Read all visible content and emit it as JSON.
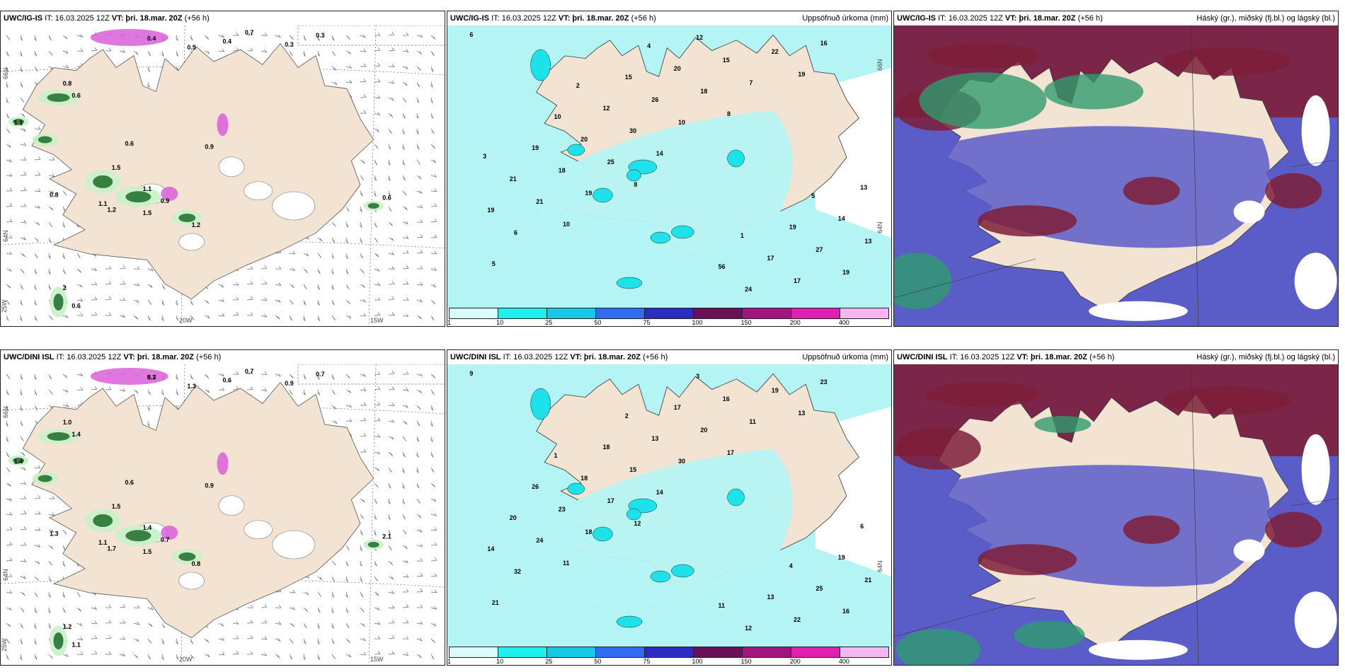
{
  "colors": {
    "land": "#f2e3d3",
    "sea": "#ffffff",
    "precip_light": "#b5f4f4",
    "precip_cyan": "#1ee2ea",
    "green_light": "#c9f1c9",
    "green_dark": "#1d6b2a",
    "magenta": "#d95fd9",
    "purple_dark": "#6c2a5a",
    "cloud_high": "#7e1f3a",
    "cloud_mid": "#5a5cc8",
    "cloud_low": "#2f9b6e"
  },
  "panels": [
    {
      "id": "ig-wind",
      "model": "UWC/IG-IS",
      "it_text": "IT: 16.03.2025 12Z",
      "vt_text": "VT: þri. 18.mar. 20Z",
      "lead": "(+56 h)",
      "right_title": "",
      "axes": {
        "lat1": "66N",
        "lat2": "64N",
        "lon0": "25W",
        "lon1": "20W",
        "lon2": "15W"
      },
      "values": [
        "0.4",
        "0.5",
        "0.4",
        "0.7",
        "0.3",
        "0.3",
        "0.8",
        "0.6",
        "1.1",
        "0.6",
        "0.9",
        "1.5",
        "0.8",
        "1.1",
        "0.9",
        "1.2",
        "1.1",
        "1.5",
        "1.2",
        "0.6",
        "2",
        "0.6"
      ]
    },
    {
      "id": "ig-precip",
      "model": "UWC/IG-IS",
      "it_text": "IT: 16.03.2025 12Z",
      "vt_text": "VT: þri. 18.mar. 20Z",
      "lead": "(+56 h)",
      "right_title": "Uppsöfnuð úrkoma (mm)",
      "axes": {
        "lat1": "66N",
        "lat2": "64N",
        "lon0": "",
        "lon1": "",
        "lon2": ""
      },
      "values": [
        "6",
        "8",
        "19",
        "10",
        "8",
        "5",
        "14",
        "16",
        "19",
        "7",
        "6",
        "10",
        "19",
        "25",
        "22",
        "21",
        "18",
        "13",
        "30",
        "17",
        "18",
        "15",
        "19",
        "26",
        "27",
        "20",
        "24",
        "21",
        "20",
        "14",
        "12",
        "17",
        "19",
        "12",
        "13",
        "15",
        "19",
        "10",
        "56",
        "3",
        "4",
        "5",
        "2",
        "1"
      ]
    },
    {
      "id": "ig-cloud",
      "model": "UWC/IG-IS",
      "it_text": "IT: 16.03.2025 12Z",
      "vt_text": "VT: þri. 18.mar. 20Z",
      "lead": "(+56 h)",
      "right_title": "Háský (gr.), miðský (fj.bl.) og lágský (bl.)"
    },
    {
      "id": "dini-wind",
      "model": "UWC/DINI ISL",
      "it_text": "IT: 16.03.2025 12Z",
      "vt_text": "VT: þri. 18.mar. 20Z",
      "lead": "(+56 h)",
      "right_title": "",
      "axes": {
        "lat1": "66N",
        "lat2": "64N",
        "lon0": "25W",
        "lon1": "20W",
        "lon2": "15W"
      },
      "values": [
        "0.7",
        "1.3",
        "0.6",
        "0.7",
        "0.9",
        "0.7",
        "1.0",
        "1.4",
        "1.4",
        "0.6",
        "0.9",
        "1.5",
        "1.3",
        "1.4",
        "0.7",
        "1.7",
        "1.1",
        "1.5",
        "0.8",
        "2.1",
        "1.2",
        "1.1",
        "5.3"
      ]
    },
    {
      "id": "dini-precip",
      "model": "UWC/DINI ISL",
      "it_text": "IT: 16.03.2025 12Z",
      "vt_text": "VT: þri. 18.mar. 20Z",
      "lead": "(+56 h)",
      "right_title": "Uppsöfnuð úrkoma (mm)",
      "axes": {
        "lat1": "",
        "lat2": "64N",
        "lon0": "",
        "lon1": "",
        "lon2": ""
      },
      "values": [
        "9",
        "12",
        "13",
        "11",
        "17",
        "21",
        "14",
        "23",
        "18",
        "11",
        "32",
        "30",
        "16",
        "17",
        "19",
        "24",
        "20",
        "21",
        "15",
        "22",
        "23",
        "16",
        "14",
        "13",
        "25",
        "18",
        "12",
        "20",
        "17",
        "19",
        "18",
        "13",
        "26",
        "3",
        "6",
        "2",
        "4",
        "1",
        "11"
      ]
    },
    {
      "id": "dini-cloud",
      "model": "UWC/DINI ISL",
      "it_text": "IT: 16.03.2025 12Z",
      "vt_text": "VT: þri. 18.mar. 20Z",
      "lead": "(+56 h)",
      "right_title": "Háský (gr.), miðský (fj.bl.) og lágský (bl.)"
    }
  ],
  "colorbar": {
    "ticks": [
      "1",
      "10",
      "25",
      "50",
      "75",
      "100",
      "150",
      "200",
      "400"
    ],
    "colors": [
      "#d9fbfb",
      "#1ef0f0",
      "#17c8e6",
      "#2f6cf0",
      "#2b2cc0",
      "#6b0f56",
      "#a0157e",
      "#e020b0",
      "#f5b5f0"
    ]
  }
}
